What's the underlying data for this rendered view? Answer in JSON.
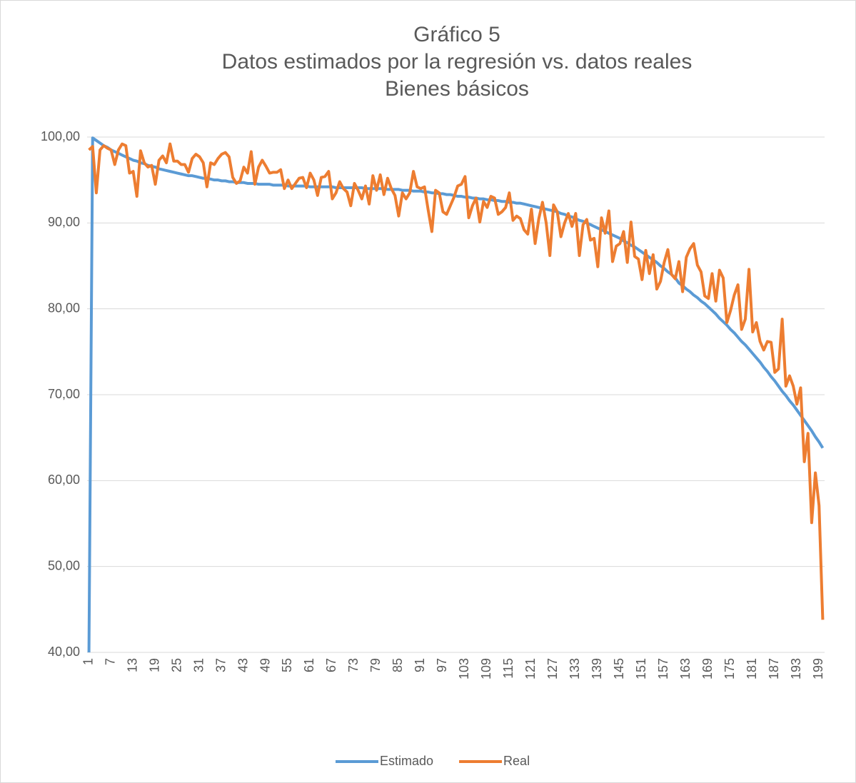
{
  "chart_data": {
    "type": "line",
    "title": "Gráfico 5",
    "subtitle": [
      "Datos estimados por la regresión vs. datos reales",
      "Bienes básicos"
    ],
    "categories": [
      "1",
      null,
      null,
      null,
      null,
      null,
      "7",
      null,
      null,
      null,
      null,
      null,
      "13",
      null,
      null,
      null,
      null,
      null,
      "19",
      null,
      null,
      null,
      null,
      null,
      "25",
      null,
      null,
      null,
      null,
      null,
      "31",
      null,
      null,
      null,
      null,
      null,
      "37",
      null,
      null,
      null,
      null,
      null,
      "43",
      null,
      null,
      null,
      null,
      null,
      "49",
      null,
      null,
      null,
      null,
      null,
      "55",
      null,
      null,
      null,
      null,
      null,
      "61",
      null,
      null,
      null,
      null,
      null,
      "67",
      null,
      null,
      null,
      null,
      null,
      "73",
      null,
      null,
      null,
      null,
      null,
      "79",
      null,
      null,
      null,
      null,
      null,
      "85",
      null,
      null,
      null,
      null,
      null,
      "91",
      null,
      null,
      null,
      null,
      null,
      "97",
      null,
      null,
      null,
      null,
      null,
      "103",
      null,
      null,
      null,
      null,
      null,
      "109",
      null,
      null,
      null,
      null,
      null,
      "115",
      null,
      null,
      null,
      null,
      null,
      "121",
      null,
      null,
      null,
      null,
      null,
      "127",
      null,
      null,
      null,
      null,
      null,
      "133",
      null,
      null,
      null,
      null,
      null,
      "139",
      null,
      null,
      null,
      null,
      null,
      "145",
      null,
      null,
      null,
      null,
      null,
      "151",
      null,
      null,
      null,
      null,
      null,
      "157",
      null,
      null,
      null,
      null,
      null,
      "163",
      null,
      null,
      null,
      null,
      null,
      "169",
      null,
      null,
      null,
      null,
      null,
      "175",
      null,
      null,
      null,
      null,
      null,
      "181",
      null,
      null,
      null,
      null,
      null,
      "187",
      null,
      null,
      null,
      null,
      null,
      "193",
      null,
      null,
      null,
      null,
      null,
      "199",
      null
    ],
    "series": [
      {
        "name": "Estimado",
        "color": "#5b9bd5",
        "values": [
          40,
          99.9,
          99.6,
          99.3,
          99.0,
          98.8,
          98.5,
          98.3,
          98.1,
          97.9,
          97.7,
          97.5,
          97.3,
          97.2,
          97.0,
          96.9,
          96.7,
          96.6,
          96.5,
          96.3,
          96.2,
          96.1,
          96.0,
          95.9,
          95.8,
          95.7,
          95.6,
          95.5,
          95.5,
          95.4,
          95.3,
          95.2,
          95.2,
          95.1,
          95.0,
          95.0,
          94.9,
          94.9,
          94.8,
          94.8,
          94.7,
          94.7,
          94.7,
          94.6,
          94.6,
          94.6,
          94.5,
          94.5,
          94.5,
          94.5,
          94.4,
          94.4,
          94.4,
          94.4,
          94.3,
          94.3,
          94.3,
          94.3,
          94.3,
          94.3,
          94.2,
          94.2,
          94.2,
          94.2,
          94.2,
          94.2,
          94.2,
          94.1,
          94.1,
          94.1,
          94.1,
          94.1,
          94.1,
          94.1,
          94.1,
          94.0,
          94.0,
          94.0,
          94.0,
          94.0,
          94.0,
          93.9,
          93.9,
          93.9,
          93.9,
          93.8,
          93.8,
          93.8,
          93.7,
          93.7,
          93.7,
          93.6,
          93.6,
          93.5,
          93.5,
          93.4,
          93.4,
          93.3,
          93.3,
          93.2,
          93.1,
          93.1,
          93.0,
          93.0,
          92.9,
          92.9,
          92.8,
          92.8,
          92.7,
          92.7,
          92.6,
          92.6,
          92.5,
          92.5,
          92.4,
          92.4,
          92.3,
          92.3,
          92.2,
          92.1,
          92.0,
          91.9,
          91.8,
          91.7,
          91.6,
          91.5,
          91.4,
          91.3,
          91.1,
          91.0,
          90.8,
          90.7,
          90.5,
          90.3,
          90.2,
          90.0,
          89.8,
          89.6,
          89.4,
          89.2,
          89.0,
          88.8,
          88.6,
          88.4,
          88.2,
          87.9,
          87.7,
          87.4,
          87.2,
          86.9,
          86.6,
          86.3,
          86.0,
          85.7,
          85.4,
          85.0,
          84.7,
          84.3,
          84.0,
          83.6,
          83.0,
          82.7,
          82.3,
          82.0,
          81.6,
          81.3,
          80.9,
          80.6,
          80.2,
          79.8,
          79.4,
          78.9,
          78.5,
          78.1,
          77.6,
          77.2,
          76.7,
          76.2,
          75.8,
          75.3,
          74.8,
          74.3,
          73.8,
          73.2,
          72.7,
          72.1,
          71.6,
          71.0,
          70.4,
          69.9,
          69.3,
          68.8,
          68.2,
          67.6,
          67.0,
          66.4,
          65.8,
          65.1,
          64.5,
          63.8
        ]
      },
      {
        "name": "Real",
        "color": "#ed7d31",
        "values": [
          98.5,
          98.9,
          93.5,
          98.5,
          99.0,
          98.7,
          98.5,
          96.8,
          98.5,
          99.2,
          99.0,
          95.8,
          96.0,
          93.1,
          98.4,
          97.0,
          96.5,
          96.7,
          94.5,
          97.3,
          97.8,
          97.0,
          99.2,
          97.2,
          97.2,
          96.8,
          96.8,
          95.9,
          97.5,
          98.0,
          97.7,
          97.0,
          94.2,
          97.0,
          96.8,
          97.5,
          98.0,
          98.2,
          97.7,
          95.3,
          94.6,
          94.9,
          96.5,
          95.8,
          98.3,
          94.5,
          96.5,
          97.3,
          96.6,
          95.8,
          95.9,
          95.9,
          96.2,
          94.0,
          95.0,
          94.0,
          94.6,
          95.2,
          95.3,
          94.1,
          95.8,
          95.0,
          93.2,
          95.3,
          95.4,
          96.0,
          92.8,
          93.5,
          94.8,
          94.0,
          93.6,
          92.0,
          94.6,
          93.8,
          92.8,
          94.3,
          92.2,
          95.5,
          93.8,
          95.6,
          93.3,
          95.2,
          94.0,
          93.2,
          90.8,
          93.5,
          92.8,
          93.5,
          96.0,
          94.2,
          94.0,
          94.2,
          91.5,
          89.0,
          93.8,
          93.5,
          91.3,
          91.0,
          92.0,
          93.0,
          94.3,
          94.5,
          95.4,
          90.6,
          92.0,
          92.9,
          90.1,
          92.5,
          91.8,
          93.1,
          92.9,
          91.0,
          91.3,
          91.8,
          93.5,
          90.3,
          90.8,
          90.5,
          89.2,
          88.7,
          91.6,
          87.6,
          90.5,
          92.4,
          90.0,
          86.2,
          92.1,
          91.3,
          88.4,
          90.0,
          91.1,
          89.6,
          91.1,
          86.2,
          89.8,
          90.4,
          88.0,
          88.2,
          84.9,
          90.6,
          88.8,
          91.4,
          85.5,
          87.3,
          87.6,
          89.0,
          85.4,
          90.1,
          86.1,
          85.8,
          83.4,
          86.8,
          84.1,
          86.3,
          82.3,
          83.2,
          85.4,
          86.9,
          84.0,
          83.5,
          85.5,
          82.0,
          86.0,
          87.0,
          87.6,
          85.1,
          84.3,
          81.5,
          81.2,
          84.1,
          80.9,
          84.5,
          83.6,
          78.4,
          79.8,
          81.6,
          82.8,
          77.6,
          78.8,
          84.6,
          77.3,
          78.4,
          76.2,
          75.2,
          76.2,
          76.1,
          72.6,
          73.0,
          78.8,
          71.0,
          72.2,
          71.0,
          68.9,
          70.8,
          62.2,
          65.5,
          55.1,
          60.9,
          57.1,
          43.8
        ]
      }
    ],
    "ylim": [
      40,
      100
    ],
    "yticks": [
      {
        "value": 40,
        "label": "40,00"
      },
      {
        "value": 50,
        "label": "50,00"
      },
      {
        "value": 60,
        "label": "60,00"
      },
      {
        "value": 70,
        "label": "70,00"
      },
      {
        "value": 80,
        "label": "80,00"
      },
      {
        "value": 90,
        "label": "90,00"
      },
      {
        "value": 100,
        "label": "100,00"
      }
    ],
    "grid": true,
    "legend": "bottom"
  }
}
